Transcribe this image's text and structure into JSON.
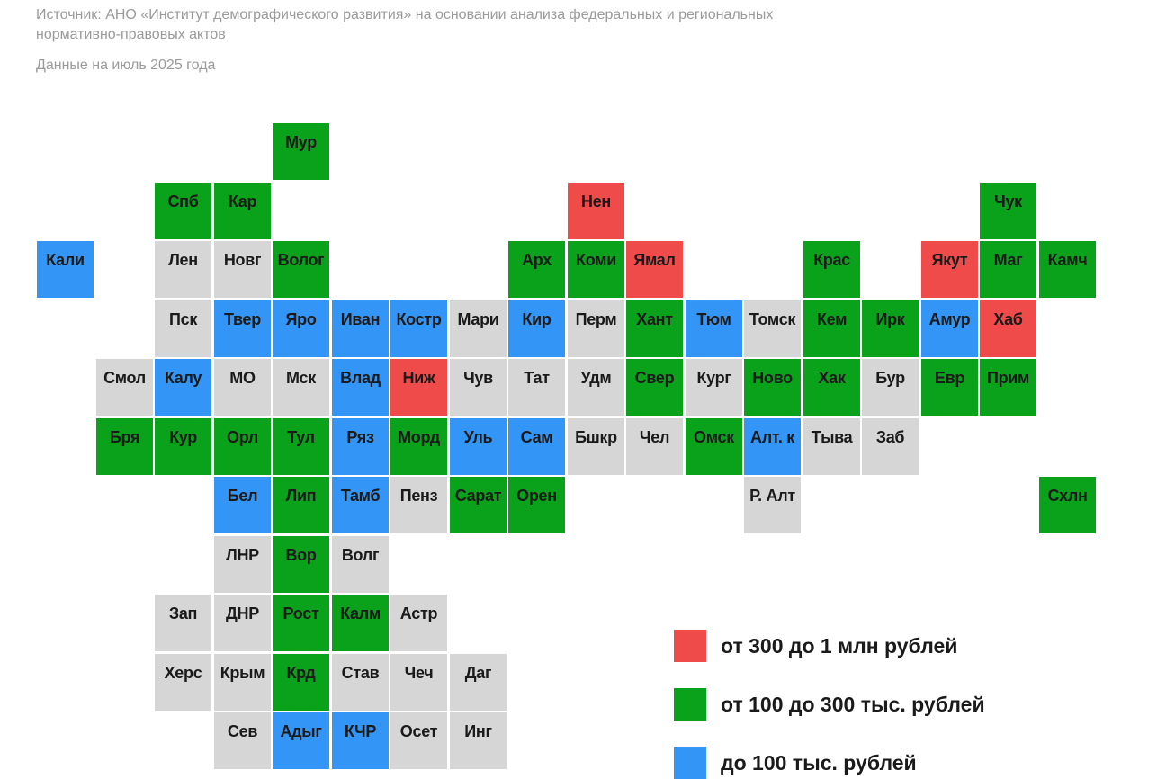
{
  "source_text": "Источник: АНО «Институт демографического развития» на основании анализа федеральных и региональных нормативно-правовых актов",
  "date_text": "Данные на июль 2025 года",
  "colors": {
    "red": "#ef4b4b",
    "green": "#0aa21b",
    "blue": "#3395f5",
    "gray": "#d6d6d6"
  },
  "legend": [
    {
      "label": "от 300 до 1 млн рублей",
      "category": "red"
    },
    {
      "label": "от 100 до 300 тыс. рублей",
      "category": "green"
    },
    {
      "label": "до 100 тыс. рублей",
      "category": "blue"
    }
  ],
  "regions": [
    {
      "label": "Мур",
      "col": 4,
      "row": 0,
      "category": "green"
    },
    {
      "label": "Спб",
      "col": 2,
      "row": 1,
      "category": "green"
    },
    {
      "label": "Кар",
      "col": 3,
      "row": 1,
      "category": "green"
    },
    {
      "label": "Нен",
      "col": 9,
      "row": 1,
      "category": "red"
    },
    {
      "label": "Чук",
      "col": 16,
      "row": 1,
      "category": "green"
    },
    {
      "label": "Кали",
      "col": 0,
      "row": 2,
      "category": "blue"
    },
    {
      "label": "Лен",
      "col": 2,
      "row": 2,
      "category": "gray"
    },
    {
      "label": "Новг",
      "col": 3,
      "row": 2,
      "category": "gray"
    },
    {
      "label": "Волог",
      "col": 4,
      "row": 2,
      "category": "green"
    },
    {
      "label": "Арх",
      "col": 8,
      "row": 2,
      "category": "green"
    },
    {
      "label": "Коми",
      "col": 9,
      "row": 2,
      "category": "green"
    },
    {
      "label": "Ямал",
      "col": 10,
      "row": 2,
      "category": "red"
    },
    {
      "label": "Крас",
      "col": 13,
      "row": 2,
      "category": "green"
    },
    {
      "label": "Якут",
      "col": 15,
      "row": 2,
      "category": "red"
    },
    {
      "label": "Маг",
      "col": 16,
      "row": 2,
      "category": "green"
    },
    {
      "label": "Камч",
      "col": 17,
      "row": 2,
      "category": "green"
    },
    {
      "label": "Пск",
      "col": 2,
      "row": 3,
      "category": "gray"
    },
    {
      "label": "Твер",
      "col": 3,
      "row": 3,
      "category": "blue"
    },
    {
      "label": "Яро",
      "col": 4,
      "row": 3,
      "category": "blue"
    },
    {
      "label": "Иван",
      "col": 5,
      "row": 3,
      "category": "blue"
    },
    {
      "label": "Костр",
      "col": 6,
      "row": 3,
      "category": "blue"
    },
    {
      "label": "Мари",
      "col": 7,
      "row": 3,
      "category": "gray"
    },
    {
      "label": "Кир",
      "col": 8,
      "row": 3,
      "category": "blue"
    },
    {
      "label": "Перм",
      "col": 9,
      "row": 3,
      "category": "gray"
    },
    {
      "label": "Хант",
      "col": 10,
      "row": 3,
      "category": "green"
    },
    {
      "label": "Тюм",
      "col": 11,
      "row": 3,
      "category": "blue"
    },
    {
      "label": "Томск",
      "col": 12,
      "row": 3,
      "category": "gray"
    },
    {
      "label": "Кем",
      "col": 13,
      "row": 3,
      "category": "green"
    },
    {
      "label": "Ирк",
      "col": 14,
      "row": 3,
      "category": "green"
    },
    {
      "label": "Амур",
      "col": 15,
      "row": 3,
      "category": "blue"
    },
    {
      "label": "Хаб",
      "col": 16,
      "row": 3,
      "category": "red"
    },
    {
      "label": "Смол",
      "col": 1,
      "row": 4,
      "category": "gray"
    },
    {
      "label": "Калу",
      "col": 2,
      "row": 4,
      "category": "blue"
    },
    {
      "label": "МО",
      "col": 3,
      "row": 4,
      "category": "gray"
    },
    {
      "label": "Мск",
      "col": 4,
      "row": 4,
      "category": "gray"
    },
    {
      "label": "Влад",
      "col": 5,
      "row": 4,
      "category": "blue"
    },
    {
      "label": "Ниж",
      "col": 6,
      "row": 4,
      "category": "red"
    },
    {
      "label": "Чув",
      "col": 7,
      "row": 4,
      "category": "gray"
    },
    {
      "label": "Тат",
      "col": 8,
      "row": 4,
      "category": "gray"
    },
    {
      "label": "Удм",
      "col": 9,
      "row": 4,
      "category": "gray"
    },
    {
      "label": "Свер",
      "col": 10,
      "row": 4,
      "category": "green"
    },
    {
      "label": "Кург",
      "col": 11,
      "row": 4,
      "category": "gray"
    },
    {
      "label": "Ново",
      "col": 12,
      "row": 4,
      "category": "green"
    },
    {
      "label": "Хак",
      "col": 13,
      "row": 4,
      "category": "green"
    },
    {
      "label": "Бур",
      "col": 14,
      "row": 4,
      "category": "gray"
    },
    {
      "label": "Евр",
      "col": 15,
      "row": 4,
      "category": "green"
    },
    {
      "label": "Прим",
      "col": 16,
      "row": 4,
      "category": "green"
    },
    {
      "label": "Бря",
      "col": 1,
      "row": 5,
      "category": "green"
    },
    {
      "label": "Кур",
      "col": 2,
      "row": 5,
      "category": "green"
    },
    {
      "label": "Орл",
      "col": 3,
      "row": 5,
      "category": "green"
    },
    {
      "label": "Тул",
      "col": 4,
      "row": 5,
      "category": "green"
    },
    {
      "label": "Ряз",
      "col": 5,
      "row": 5,
      "category": "blue"
    },
    {
      "label": "Морд",
      "col": 6,
      "row": 5,
      "category": "green"
    },
    {
      "label": "Уль",
      "col": 7,
      "row": 5,
      "category": "blue"
    },
    {
      "label": "Сам",
      "col": 8,
      "row": 5,
      "category": "blue"
    },
    {
      "label": "Бшкр",
      "col": 9,
      "row": 5,
      "category": "gray"
    },
    {
      "label": "Чел",
      "col": 10,
      "row": 5,
      "category": "gray"
    },
    {
      "label": "Омск",
      "col": 11,
      "row": 5,
      "category": "green"
    },
    {
      "label": "Алт. к",
      "col": 12,
      "row": 5,
      "category": "blue"
    },
    {
      "label": "Тыва",
      "col": 13,
      "row": 5,
      "category": "gray"
    },
    {
      "label": "Заб",
      "col": 14,
      "row": 5,
      "category": "gray"
    },
    {
      "label": "Бел",
      "col": 3,
      "row": 6,
      "category": "blue"
    },
    {
      "label": "Лип",
      "col": 4,
      "row": 6,
      "category": "green"
    },
    {
      "label": "Тамб",
      "col": 5,
      "row": 6,
      "category": "blue"
    },
    {
      "label": "Пенз",
      "col": 6,
      "row": 6,
      "category": "gray"
    },
    {
      "label": "Сарат",
      "col": 7,
      "row": 6,
      "category": "green"
    },
    {
      "label": "Орен",
      "col": 8,
      "row": 6,
      "category": "green"
    },
    {
      "label": "Р. Алт",
      "col": 12,
      "row": 6,
      "category": "gray"
    },
    {
      "label": "Схлн",
      "col": 17,
      "row": 6,
      "category": "green"
    },
    {
      "label": "ЛНР",
      "col": 3,
      "row": 7,
      "category": "gray"
    },
    {
      "label": "Вор",
      "col": 4,
      "row": 7,
      "category": "green"
    },
    {
      "label": "Волг",
      "col": 5,
      "row": 7,
      "category": "gray"
    },
    {
      "label": "Зап",
      "col": 2,
      "row": 8,
      "category": "gray"
    },
    {
      "label": "ДНР",
      "col": 3,
      "row": 8,
      "category": "gray"
    },
    {
      "label": "Рост",
      "col": 4,
      "row": 8,
      "category": "green"
    },
    {
      "label": "Калм",
      "col": 5,
      "row": 8,
      "category": "green"
    },
    {
      "label": "Астр",
      "col": 6,
      "row": 8,
      "category": "gray"
    },
    {
      "label": "Херс",
      "col": 2,
      "row": 9,
      "category": "gray"
    },
    {
      "label": "Крым",
      "col": 3,
      "row": 9,
      "category": "gray"
    },
    {
      "label": "Крд",
      "col": 4,
      "row": 9,
      "category": "green"
    },
    {
      "label": "Став",
      "col": 5,
      "row": 9,
      "category": "gray"
    },
    {
      "label": "Чеч",
      "col": 6,
      "row": 9,
      "category": "gray"
    },
    {
      "label": "Даг",
      "col": 7,
      "row": 9,
      "category": "gray"
    },
    {
      "label": "Сев",
      "col": 3,
      "row": 10,
      "category": "gray"
    },
    {
      "label": "Адыг",
      "col": 4,
      "row": 10,
      "category": "blue"
    },
    {
      "label": "КЧР",
      "col": 5,
      "row": 10,
      "category": "blue"
    },
    {
      "label": "Осет",
      "col": 6,
      "row": 10,
      "category": "gray"
    },
    {
      "label": "Инг",
      "col": 7,
      "row": 10,
      "category": "gray"
    }
  ]
}
